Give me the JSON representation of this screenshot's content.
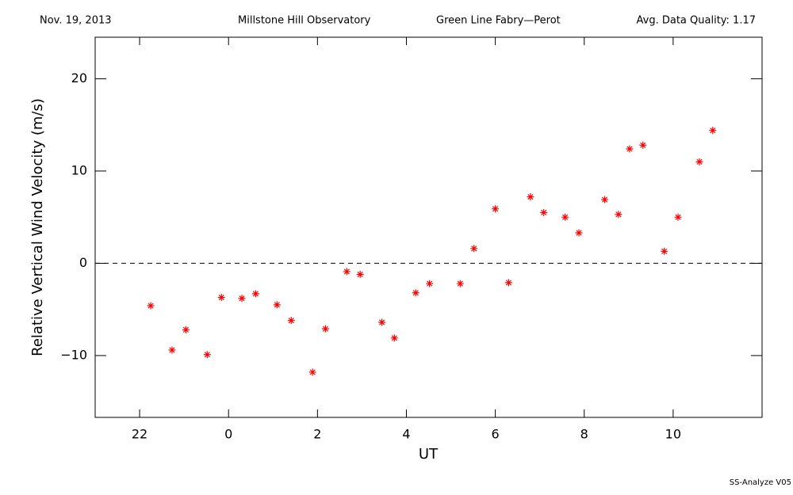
{
  "chart_data": {
    "type": "scatter",
    "header": [
      "Nov. 19, 2013",
      "Millstone Hill Observatory",
      "Green Line Fabry—Perot",
      "Avg. Data Quality: 1.17"
    ],
    "footer": "SS-Analyze V05",
    "x_label": "UT",
    "y_label": "Relative Vertical Wind Velocity (m/s)",
    "xlim": [
      -3,
      12
    ],
    "ylim": [
      -16.7,
      24.5
    ],
    "xticks": [
      {
        "value": -2,
        "label": "22"
      },
      0,
      2,
      4,
      6,
      8,
      10
    ],
    "yticks": [
      {
        "value": -10,
        "label": "−10"
      },
      0,
      10,
      20
    ],
    "reference_line": 0,
    "color": "#ff0000",
    "x": [
      -1.75,
      -1.27,
      -0.96,
      -0.48,
      -0.16,
      0.3,
      0.61,
      1.09,
      1.41,
      1.89,
      2.18,
      2.66,
      2.96,
      3.45,
      3.73,
      4.21,
      4.52,
      5.21,
      5.52,
      6.0,
      6.3,
      6.79,
      7.09,
      7.57,
      7.88,
      8.46,
      8.77,
      9.02,
      9.32,
      9.8,
      10.11,
      10.59,
      10.89
    ],
    "values": [
      -4.6,
      -9.4,
      -7.2,
      -9.9,
      -3.7,
      -3.8,
      -3.3,
      -4.5,
      -6.2,
      -11.8,
      -7.1,
      -0.9,
      -1.2,
      -6.4,
      -8.1,
      -3.2,
      -2.2,
      -2.2,
      1.6,
      5.9,
      -2.1,
      7.2,
      5.5,
      5.0,
      3.3,
      6.9,
      5.3,
      12.4,
      12.8,
      1.3,
      5.0,
      11.0,
      14.4
    ]
  }
}
